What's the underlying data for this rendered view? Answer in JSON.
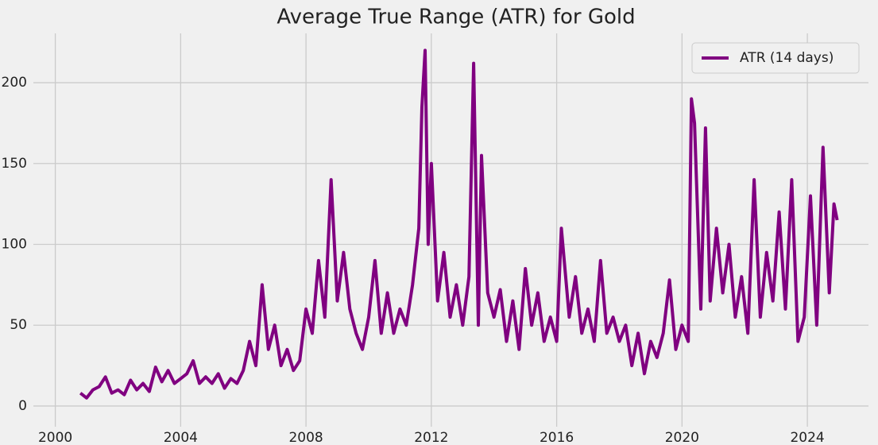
{
  "chart_data": {
    "type": "line",
    "title": "Average True Range (ATR) for Gold",
    "x": [
      2000.8,
      2001.0,
      2001.2,
      2001.4,
      2001.6,
      2001.8,
      2002.0,
      2002.2,
      2002.4,
      2002.6,
      2002.8,
      2003.0,
      2003.2,
      2003.4,
      2003.6,
      2003.8,
      2004.0,
      2004.2,
      2004.4,
      2004.6,
      2004.8,
      2005.0,
      2005.2,
      2005.4,
      2005.6,
      2005.8,
      2006.0,
      2006.2,
      2006.4,
      2006.6,
      2006.8,
      2007.0,
      2007.2,
      2007.4,
      2007.6,
      2007.8,
      2008.0,
      2008.2,
      2008.4,
      2008.6,
      2008.8,
      2009.0,
      2009.2,
      2009.4,
      2009.6,
      2009.8,
      2010.0,
      2010.2,
      2010.4,
      2010.6,
      2010.8,
      2011.0,
      2011.2,
      2011.4,
      2011.6,
      2011.7,
      2011.8,
      2011.9,
      2012.0,
      2012.2,
      2012.4,
      2012.6,
      2012.8,
      2013.0,
      2013.2,
      2013.35,
      2013.5,
      2013.6,
      2013.8,
      2014.0,
      2014.2,
      2014.4,
      2014.6,
      2014.8,
      2015.0,
      2015.2,
      2015.4,
      2015.6,
      2015.8,
      2016.0,
      2016.15,
      2016.4,
      2016.6,
      2016.8,
      2017.0,
      2017.2,
      2017.4,
      2017.6,
      2017.8,
      2018.0,
      2018.2,
      2018.4,
      2018.6,
      2018.8,
      2019.0,
      2019.2,
      2019.4,
      2019.6,
      2019.8,
      2020.0,
      2020.2,
      2020.3,
      2020.4,
      2020.6,
      2020.75,
      2020.9,
      2021.1,
      2021.3,
      2021.5,
      2021.7,
      2021.9,
      2022.1,
      2022.3,
      2022.5,
      2022.7,
      2022.9,
      2023.1,
      2023.3,
      2023.5,
      2023.7,
      2023.9,
      2024.1,
      2024.3,
      2024.5,
      2024.7,
      2024.85,
      2024.95
    ],
    "series": [
      {
        "name": "ATR (14 days)",
        "color": "#800080",
        "values": [
          8,
          5,
          10,
          12,
          18,
          8,
          10,
          7,
          16,
          10,
          14,
          9,
          24,
          15,
          22,
          14,
          17,
          20,
          28,
          14,
          18,
          14,
          20,
          11,
          17,
          14,
          22,
          40,
          25,
          75,
          35,
          50,
          25,
          35,
          22,
          28,
          60,
          45,
          90,
          55,
          140,
          65,
          95,
          60,
          45,
          35,
          55,
          90,
          45,
          70,
          45,
          60,
          50,
          75,
          110,
          185,
          220,
          100,
          150,
          65,
          95,
          55,
          75,
          50,
          80,
          212,
          50,
          155,
          70,
          55,
          72,
          40,
          65,
          35,
          85,
          50,
          70,
          40,
          55,
          40,
          110,
          55,
          80,
          45,
          60,
          40,
          90,
          45,
          55,
          40,
          50,
          25,
          45,
          20,
          40,
          30,
          45,
          78,
          35,
          50,
          40,
          190,
          175,
          60,
          172,
          65,
          110,
          70,
          100,
          55,
          80,
          45,
          140,
          55,
          95,
          65,
          120,
          60,
          140,
          40,
          55,
          130,
          50,
          160,
          70,
          125,
          115
        ]
      }
    ],
    "xlim": [
      1999.3,
      2025.95
    ],
    "ylim": [
      -12.8,
      230.5
    ],
    "xticks": [
      2000,
      2004,
      2008,
      2012,
      2016,
      2020,
      2024
    ],
    "yticks": [
      0,
      50,
      100,
      150,
      200
    ],
    "grid": true,
    "legend": "upper right"
  }
}
